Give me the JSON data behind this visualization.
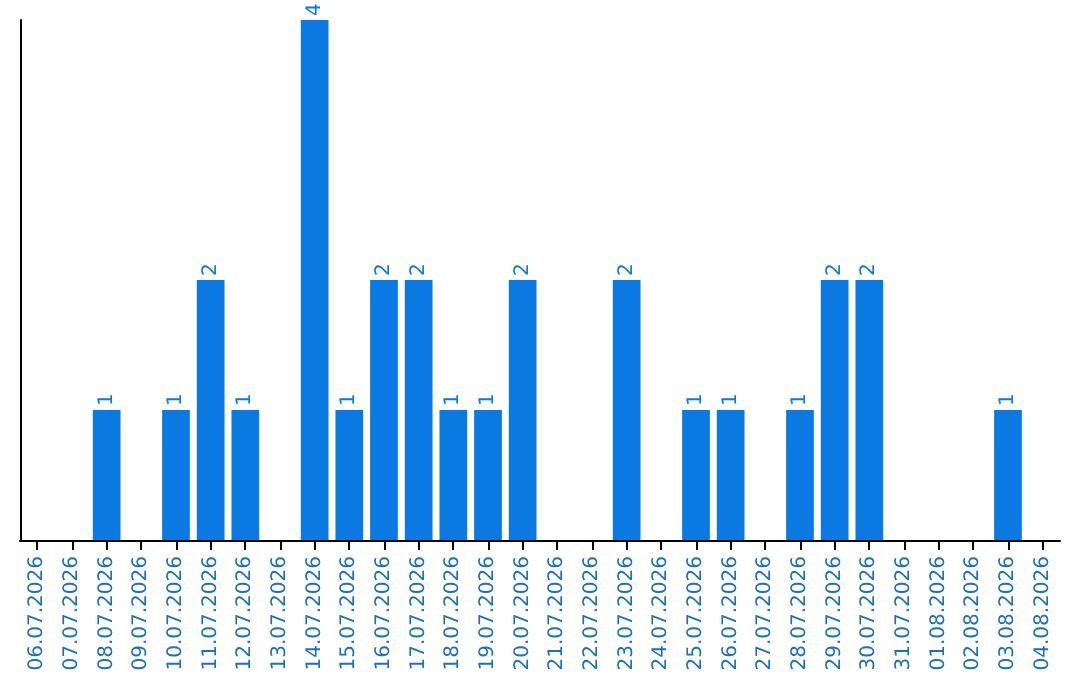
{
  "chart_data": {
    "type": "bar",
    "categories": [
      "06.07.2026",
      "07.07.2026",
      "08.07.2026",
      "09.07.2026",
      "10.07.2026",
      "11.07.2026",
      "12.07.2026",
      "13.07.2026",
      "14.07.2026",
      "15.07.2026",
      "16.07.2026",
      "17.07.2026",
      "18.07.2026",
      "19.07.2026",
      "20.07.2026",
      "21.07.2026",
      "22.07.2026",
      "23.07.2026",
      "24.07.2026",
      "25.07.2026",
      "26.07.2026",
      "27.07.2026",
      "28.07.2026",
      "29.07.2026",
      "30.07.2026",
      "31.07.2026",
      "01.08.2026",
      "02.08.2026",
      "03.08.2026",
      "04.08.2026"
    ],
    "values": [
      0,
      0,
      1,
      0,
      1,
      2,
      1,
      0,
      4,
      1,
      2,
      2,
      1,
      1,
      2,
      0,
      0,
      2,
      0,
      1,
      1,
      0,
      1,
      2,
      2,
      0,
      0,
      0,
      1,
      0
    ],
    "value_labels": [
      null,
      null,
      "1",
      null,
      "1",
      "2",
      "1",
      null,
      "4",
      "1",
      "2",
      "2",
      "1",
      "1",
      "2",
      null,
      null,
      "2",
      null,
      "1",
      "1",
      null,
      "1",
      "2",
      "2",
      null,
      null,
      null,
      "1",
      null
    ],
    "color": "#0a7ae2",
    "tick_labels": "x",
    "grid": false
  }
}
